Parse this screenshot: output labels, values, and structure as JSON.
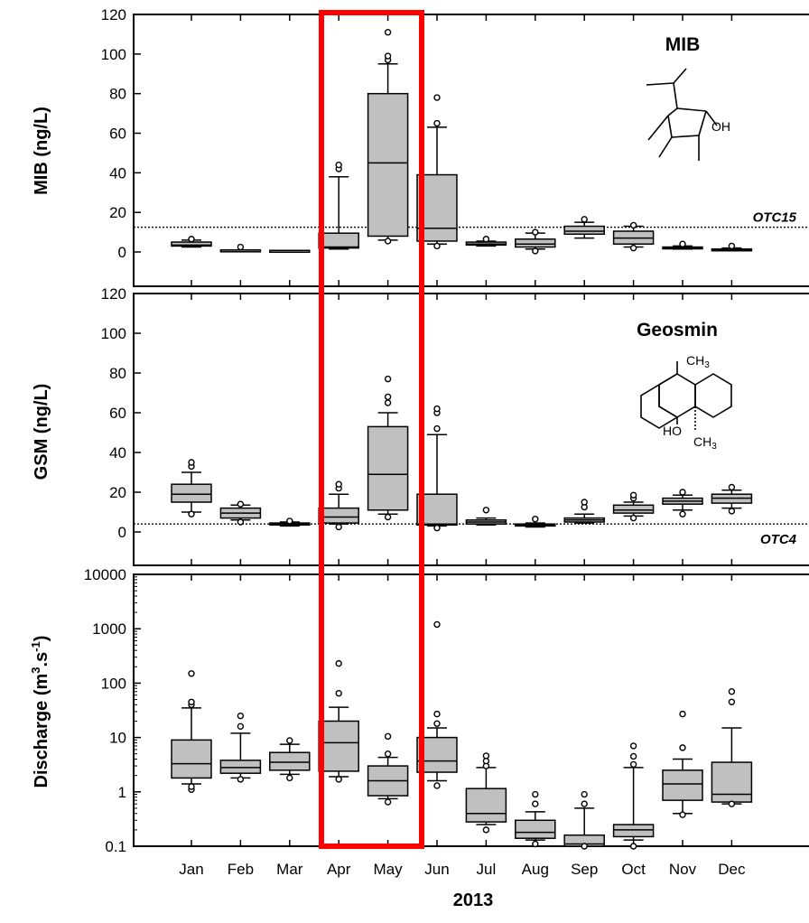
{
  "chart_data": [
    {
      "type": "box",
      "title": "MIB",
      "ylabel": "MIB (ng/L)",
      "ylim": [
        0,
        120
      ],
      "yticks": [
        "0",
        "20",
        "40",
        "60",
        "80",
        "100",
        "120"
      ],
      "threshold": {
        "label": "OTC15",
        "value": 12.5
      },
      "molecule": {
        "label": "OH"
      },
      "categories": [
        "Jan",
        "Feb",
        "Mar",
        "Apr",
        "May",
        "Jun",
        "Jul",
        "Aug",
        "Sep",
        "Oct",
        "Nov",
        "Dec"
      ],
      "boxes": [
        {
          "min": 2.5,
          "q1": 3,
          "median": 3.5,
          "q3": 5,
          "max": 6,
          "outliers": [
            6.5
          ]
        },
        {
          "min": 1,
          "q1": 1,
          "median": 1,
          "q3": 1,
          "max": 1,
          "outliers": [
            2.5
          ]
        },
        {
          "min": 0.8,
          "q1": 0.8,
          "median": 0.8,
          "q3": 0.8,
          "max": 0.8,
          "outliers": []
        },
        {
          "min": 1.5,
          "q1": 2,
          "median": 2.5,
          "q3": 9.5,
          "max": 38,
          "outliers": [
            42,
            44
          ]
        },
        {
          "min": 6,
          "q1": 8,
          "median": 45,
          "q3": 80,
          "max": 95,
          "outliers": [
            5.5,
            97,
            99,
            111
          ]
        },
        {
          "min": 4,
          "q1": 5.5,
          "median": 12,
          "q3": 39,
          "max": 63,
          "outliers": [
            3,
            65,
            78
          ]
        },
        {
          "min": 3,
          "q1": 3.5,
          "median": 4,
          "q3": 5,
          "max": 5.5,
          "outliers": [
            6.5
          ]
        },
        {
          "min": 1.5,
          "q1": 2.5,
          "median": 4,
          "q3": 6.5,
          "max": 9.5,
          "outliers": [
            0.5,
            10
          ]
        },
        {
          "min": 7,
          "q1": 9,
          "median": 10.5,
          "q3": 13,
          "max": 15,
          "outliers": [
            16.5
          ]
        },
        {
          "min": 2.5,
          "q1": 4,
          "median": 7,
          "q3": 10.5,
          "max": 13,
          "outliers": [
            2,
            13.5
          ]
        },
        {
          "min": 1.5,
          "q1": 1.8,
          "median": 2,
          "q3": 2.5,
          "max": 3,
          "outliers": [
            4
          ]
        },
        {
          "min": 1,
          "q1": 1,
          "median": 1,
          "q3": 1.5,
          "max": 2,
          "outliers": [
            3
          ]
        }
      ]
    },
    {
      "type": "box",
      "title": "Geosmin",
      "ylabel": "GSM (ng/L)",
      "ylim": [
        0,
        120
      ],
      "yticks": [
        "0",
        "20",
        "40",
        "60",
        "80",
        "100",
        "120"
      ],
      "threshold": {
        "label": "OTC4",
        "value": 4
      },
      "molecule": {
        "label_top": "CH",
        "label_top_sub": "3",
        "label_left": "HO",
        "label_bottom": "CH",
        "label_bottom_sub": "3"
      },
      "categories": [
        "Jan",
        "Feb",
        "Mar",
        "Apr",
        "May",
        "Jun",
        "Jul",
        "Aug",
        "Sep",
        "Oct",
        "Nov",
        "Dec"
      ],
      "boxes": [
        {
          "min": 10,
          "q1": 15,
          "median": 19,
          "q3": 24,
          "max": 30,
          "outliers": [
            9,
            33,
            35
          ]
        },
        {
          "min": 6,
          "q1": 7,
          "median": 9.5,
          "q3": 12,
          "max": 13.5,
          "outliers": [
            5,
            14
          ]
        },
        {
          "min": 3,
          "q1": 3.5,
          "median": 4,
          "q3": 4.5,
          "max": 5,
          "outliers": [
            5.5
          ]
        },
        {
          "min": 4,
          "q1": 4.5,
          "median": 7.5,
          "q3": 12,
          "max": 19,
          "outliers": [
            2.5,
            22,
            24
          ]
        },
        {
          "min": 9,
          "q1": 11,
          "median": 29,
          "q3": 53,
          "max": 60,
          "outliers": [
            7.5,
            65,
            68,
            77
          ]
        },
        {
          "min": 3,
          "q1": 3.5,
          "median": 4,
          "q3": 19,
          "max": 49,
          "outliers": [
            2,
            52,
            60,
            62
          ]
        },
        {
          "min": 3.5,
          "q1": 4,
          "median": 5,
          "q3": 6,
          "max": 7,
          "outliers": [
            11
          ]
        },
        {
          "min": 2.5,
          "q1": 3,
          "median": 3.5,
          "q3": 4,
          "max": 4.5,
          "outliers": [
            6.5
          ]
        },
        {
          "min": 4.5,
          "q1": 5,
          "median": 6,
          "q3": 7,
          "max": 9,
          "outliers": [
            12.5,
            15
          ]
        },
        {
          "min": 8,
          "q1": 9.5,
          "median": 11,
          "q3": 13.5,
          "max": 15,
          "outliers": [
            7,
            17,
            18.5
          ]
        },
        {
          "min": 11,
          "q1": 14,
          "median": 15.5,
          "q3": 17,
          "max": 18.5,
          "outliers": [
            9,
            20
          ]
        },
        {
          "min": 12,
          "q1": 14.5,
          "median": 17,
          "q3": 19,
          "max": 21,
          "outliers": [
            10.5,
            22.5
          ]
        }
      ]
    },
    {
      "type": "box",
      "title": "",
      "ylabel": "Discharge (m3.s-1)",
      "ylabel_parts": {
        "main": "Discharge (m",
        "sup1": "3",
        "mid": ".s",
        "sup2": "-1",
        "end": ")"
      },
      "yscale": "log",
      "ylim": [
        0.1,
        10000
      ],
      "yticks": [
        "0.1",
        "1",
        "10",
        "100",
        "1000",
        "10000"
      ],
      "xlabel": "2013",
      "categories": [
        "Jan",
        "Feb",
        "Mar",
        "Apr",
        "May",
        "Jun",
        "Jul",
        "Aug",
        "Sep",
        "Oct",
        "Nov",
        "Dec"
      ],
      "boxes": [
        {
          "min": 1.4,
          "q1": 1.8,
          "median": 3.3,
          "q3": 9,
          "max": 35,
          "outliers": [
            1.1,
            1.25,
            40,
            45,
            150
          ]
        },
        {
          "min": 1.8,
          "q1": 2.2,
          "median": 2.8,
          "q3": 3.8,
          "max": 12,
          "outliers": [
            1.7,
            16,
            25
          ]
        },
        {
          "min": 2.1,
          "q1": 2.5,
          "median": 3.5,
          "q3": 5.3,
          "max": 7.5,
          "outliers": [
            1.8,
            8.8
          ]
        },
        {
          "min": 1.9,
          "q1": 2.4,
          "median": 8,
          "q3": 20,
          "max": 36,
          "outliers": [
            1.7,
            65,
            230
          ]
        },
        {
          "min": 0.75,
          "q1": 0.85,
          "median": 1.6,
          "q3": 3,
          "max": 4.3,
          "outliers": [
            0.65,
            5,
            10.5
          ]
        },
        {
          "min": 1.6,
          "q1": 2.3,
          "median": 3.7,
          "q3": 10,
          "max": 15,
          "outliers": [
            1.3,
            18,
            27,
            1200
          ]
        },
        {
          "min": 0.25,
          "q1": 0.28,
          "median": 0.4,
          "q3": 1.15,
          "max": 2.8,
          "outliers": [
            0.2,
            3,
            3.7,
            4.6
          ]
        },
        {
          "min": 0.13,
          "q1": 0.14,
          "median": 0.18,
          "q3": 0.3,
          "max": 0.43,
          "outliers": [
            0.11,
            0.6,
            0.9
          ]
        },
        {
          "min": 0.1,
          "q1": 0.1,
          "median": 0.11,
          "q3": 0.16,
          "max": 0.5,
          "outliers": [
            0.1,
            0.6,
            0.9
          ]
        },
        {
          "min": 0.13,
          "q1": 0.15,
          "median": 0.2,
          "q3": 0.25,
          "max": 2.8,
          "outliers": [
            0.1,
            3.2,
            4.5,
            7
          ]
        },
        {
          "min": 0.4,
          "q1": 0.7,
          "median": 1.4,
          "q3": 2.5,
          "max": 4,
          "outliers": [
            0.38,
            6.5,
            27
          ]
        },
        {
          "min": 0.6,
          "q1": 0.65,
          "median": 0.9,
          "q3": 3.5,
          "max": 15,
          "outliers": [
            0.6,
            45,
            70
          ]
        }
      ]
    }
  ],
  "highlight": {
    "color": "#ff0000",
    "months": [
      "Apr",
      "May"
    ]
  }
}
